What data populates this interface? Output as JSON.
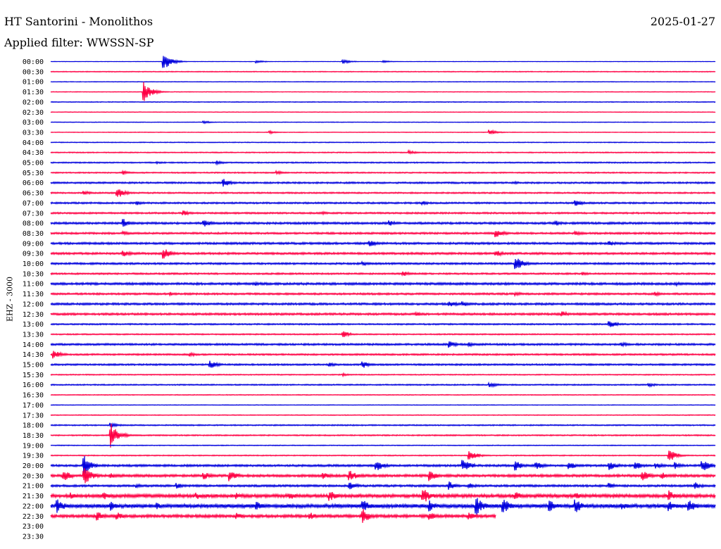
{
  "header": {
    "station": "HT Santorini - Monolithos",
    "date": "2025-01-27",
    "filter": "Applied filter: WWSSN-SP",
    "channel": "EHZ - 3000"
  },
  "colors": {
    "blue": "#0000dd",
    "red": "#ff0044"
  },
  "chart_data": {
    "type": "line",
    "title": "HT Santorini - Monolithos",
    "subtitle": "Applied filter: WWSSN-SP",
    "ylabel": "EHZ - 3000",
    "grid": false,
    "row_labels": [
      "00:00",
      "00:30",
      "01:00",
      "01:30",
      "02:00",
      "02:30",
      "03:00",
      "03:30",
      "04:00",
      "04:30",
      "05:00",
      "05:30",
      "06:00",
      "06:30",
      "07:00",
      "07:30",
      "08:00",
      "08:30",
      "09:00",
      "09:30",
      "10:00",
      "10:30",
      "11:00",
      "11:30",
      "12:00",
      "12:30",
      "13:00",
      "13:30",
      "14:00",
      "14:30",
      "15:00",
      "15:30",
      "16:00",
      "16:30",
      "17:00",
      "17:30",
      "18:00",
      "18:30",
      "19:00",
      "19:30",
      "20:00",
      "20:30",
      "21:00",
      "21:30",
      "22:00",
      "22:30",
      "23:00",
      "23:30"
    ],
    "row_color_pattern": [
      "blue",
      "red"
    ],
    "traces_drawn": 46,
    "last_trace_end_fraction": 0.67,
    "rows": [
      {
        "label": "00:00",
        "noise": 0.2,
        "events": [
          {
            "x": 0.17,
            "amp": 12
          },
          {
            "x": 0.44,
            "amp": 3
          },
          {
            "x": 0.31,
            "amp": 2
          },
          {
            "x": 0.5,
            "amp": 2
          }
        ]
      },
      {
        "label": "00:30",
        "noise": 0.4,
        "events": []
      },
      {
        "label": "01:00",
        "noise": 0.3,
        "events": []
      },
      {
        "label": "01:30",
        "noise": 0.3,
        "events": [
          {
            "x": 0.14,
            "amp": 14
          }
        ]
      },
      {
        "label": "02:00",
        "noise": 0.4,
        "events": []
      },
      {
        "label": "02:30",
        "noise": 0.3,
        "events": []
      },
      {
        "label": "03:00",
        "noise": 0.3,
        "events": [
          {
            "x": 0.23,
            "amp": 2
          }
        ]
      },
      {
        "label": "03:30",
        "noise": 0.3,
        "events": [
          {
            "x": 0.33,
            "amp": 2
          },
          {
            "x": 0.66,
            "amp": 4
          }
        ]
      },
      {
        "label": "04:00",
        "noise": 0.4,
        "events": []
      },
      {
        "label": "04:30",
        "noise": 0.5,
        "events": [
          {
            "x": 0.54,
            "amp": 3
          }
        ]
      },
      {
        "label": "05:00",
        "noise": 0.6,
        "events": [
          {
            "x": 0.16,
            "amp": 2
          },
          {
            "x": 0.25,
            "amp": 3
          }
        ]
      },
      {
        "label": "05:30",
        "noise": 0.6,
        "events": [
          {
            "x": 0.11,
            "amp": 3
          },
          {
            "x": 0.34,
            "amp": 3
          }
        ]
      },
      {
        "label": "06:00",
        "noise": 0.8,
        "events": [
          {
            "x": 0.26,
            "amp": 6
          },
          {
            "x": 0.7,
            "amp": 2
          }
        ]
      },
      {
        "label": "06:30",
        "noise": 0.7,
        "events": [
          {
            "x": 0.05,
            "amp": 3
          },
          {
            "x": 0.1,
            "amp": 8
          }
        ]
      },
      {
        "label": "07:00",
        "noise": 0.8,
        "events": [
          {
            "x": 0.13,
            "amp": 3
          },
          {
            "x": 0.56,
            "amp": 3
          },
          {
            "x": 0.79,
            "amp": 5
          }
        ]
      },
      {
        "label": "07:30",
        "noise": 0.8,
        "events": [
          {
            "x": 0.2,
            "amp": 4
          },
          {
            "x": 0.41,
            "amp": 2
          }
        ]
      },
      {
        "label": "08:00",
        "noise": 1.0,
        "events": [
          {
            "x": 0.11,
            "amp": 6
          },
          {
            "x": 0.23,
            "amp": 6
          },
          {
            "x": 0.51,
            "amp": 4
          },
          {
            "x": 0.76,
            "amp": 4
          }
        ]
      },
      {
        "label": "08:30",
        "noise": 0.9,
        "events": [
          {
            "x": 0.11,
            "amp": 3
          },
          {
            "x": 0.67,
            "amp": 7
          },
          {
            "x": 0.79,
            "amp": 4
          }
        ]
      },
      {
        "label": "09:00",
        "noise": 1.0,
        "events": [
          {
            "x": 0.48,
            "amp": 5
          },
          {
            "x": 0.84,
            "amp": 4
          }
        ]
      },
      {
        "label": "09:30",
        "noise": 1.0,
        "events": [
          {
            "x": 0.11,
            "amp": 5
          },
          {
            "x": 0.17,
            "amp": 8
          },
          {
            "x": 0.67,
            "amp": 5
          }
        ]
      },
      {
        "label": "10:00",
        "noise": 0.9,
        "events": [
          {
            "x": 0.47,
            "amp": 3
          },
          {
            "x": 0.7,
            "amp": 10
          }
        ]
      },
      {
        "label": "10:30",
        "noise": 0.8,
        "events": [
          {
            "x": 0.53,
            "amp": 4
          },
          {
            "x": 0.8,
            "amp": 3
          }
        ]
      },
      {
        "label": "11:00",
        "noise": 1.1,
        "events": [
          {
            "x": 0.31,
            "amp": 3
          },
          {
            "x": 0.94,
            "amp": 3
          }
        ]
      },
      {
        "label": "11:30",
        "noise": 0.9,
        "events": [
          {
            "x": 0.18,
            "amp": 3
          },
          {
            "x": 0.7,
            "amp": 3
          },
          {
            "x": 0.91,
            "amp": 3
          }
        ]
      },
      {
        "label": "12:00",
        "noise": 1.0,
        "events": [
          {
            "x": 0.6,
            "amp": 5
          },
          {
            "x": 0.62,
            "amp": 4
          }
        ]
      },
      {
        "label": "12:30",
        "noise": 1.0,
        "events": [
          {
            "x": 0.55,
            "amp": 3
          },
          {
            "x": 0.77,
            "amp": 4
          }
        ]
      },
      {
        "label": "13:00",
        "noise": 0.7,
        "events": [
          {
            "x": 0.84,
            "amp": 6
          }
        ]
      },
      {
        "label": "13:30",
        "noise": 0.6,
        "events": [
          {
            "x": 0.44,
            "amp": 5
          }
        ]
      },
      {
        "label": "14:00",
        "noise": 0.9,
        "events": [
          {
            "x": 0.6,
            "amp": 5
          },
          {
            "x": 0.63,
            "amp": 3
          },
          {
            "x": 0.86,
            "amp": 3
          }
        ]
      },
      {
        "label": "14:30",
        "noise": 0.8,
        "events": [
          {
            "x": 0.005,
            "amp": 7
          },
          {
            "x": 0.21,
            "amp": 3
          }
        ]
      },
      {
        "label": "15:00",
        "noise": 0.8,
        "events": [
          {
            "x": 0.24,
            "amp": 6
          },
          {
            "x": 0.42,
            "amp": 3
          },
          {
            "x": 0.47,
            "amp": 5
          }
        ]
      },
      {
        "label": "15:30",
        "noise": 0.5,
        "events": [
          {
            "x": 0.44,
            "amp": 2
          }
        ]
      },
      {
        "label": "16:00",
        "noise": 0.6,
        "events": [
          {
            "x": 0.66,
            "amp": 4
          },
          {
            "x": 0.9,
            "amp": 3
          }
        ]
      },
      {
        "label": "16:30",
        "noise": 0.4,
        "events": []
      },
      {
        "label": "17:00",
        "noise": 0.3,
        "events": []
      },
      {
        "label": "17:30",
        "noise": 0.4,
        "events": []
      },
      {
        "label": "18:00",
        "noise": 0.6,
        "events": [
          {
            "x": 0.09,
            "amp": 4
          }
        ]
      },
      {
        "label": "18:30",
        "noise": 0.6,
        "events": [
          {
            "x": 0.09,
            "amp": 18
          }
        ]
      },
      {
        "label": "19:00",
        "noise": 0.4,
        "events": []
      },
      {
        "label": "19:30",
        "noise": 0.5,
        "events": [
          {
            "x": 0.63,
            "amp": 8
          },
          {
            "x": 0.93,
            "amp": 10
          }
        ]
      },
      {
        "label": "20:00",
        "noise": 1.0,
        "events": [
          {
            "x": 0.05,
            "amp": 16
          },
          {
            "x": 0.49,
            "amp": 8
          },
          {
            "x": 0.62,
            "amp": 10
          },
          {
            "x": 0.7,
            "amp": 7
          },
          {
            "x": 0.73,
            "amp": 6
          },
          {
            "x": 0.78,
            "amp": 6
          },
          {
            "x": 0.84,
            "amp": 8
          },
          {
            "x": 0.88,
            "amp": 6
          },
          {
            "x": 0.91,
            "amp": 5
          },
          {
            "x": 0.94,
            "amp": 5
          },
          {
            "x": 0.98,
            "amp": 10
          }
        ]
      },
      {
        "label": "20:30",
        "noise": 1.2,
        "events": [
          {
            "x": 0.02,
            "amp": 8
          },
          {
            "x": 0.05,
            "amp": 14
          },
          {
            "x": 0.09,
            "amp": 4
          },
          {
            "x": 0.23,
            "amp": 6
          },
          {
            "x": 0.27,
            "amp": 8
          },
          {
            "x": 0.41,
            "amp": 5
          },
          {
            "x": 0.45,
            "amp": 8
          },
          {
            "x": 0.57,
            "amp": 8
          },
          {
            "x": 0.89,
            "amp": 8
          },
          {
            "x": 0.92,
            "amp": 5
          }
        ]
      },
      {
        "label": "21:00",
        "noise": 1.0,
        "events": [
          {
            "x": 0.13,
            "amp": 3
          },
          {
            "x": 0.19,
            "amp": 4
          },
          {
            "x": 0.45,
            "amp": 6
          },
          {
            "x": 0.6,
            "amp": 6
          },
          {
            "x": 0.63,
            "amp": 4
          },
          {
            "x": 0.84,
            "amp": 4
          },
          {
            "x": 0.97,
            "amp": 5
          }
        ]
      },
      {
        "label": "21:30",
        "noise": 1.6,
        "events": [
          {
            "x": 0.03,
            "amp": 5
          },
          {
            "x": 0.08,
            "amp": 6
          },
          {
            "x": 0.22,
            "amp": 5
          },
          {
            "x": 0.28,
            "amp": 5
          },
          {
            "x": 0.36,
            "amp": 6
          },
          {
            "x": 0.42,
            "amp": 8
          },
          {
            "x": 0.56,
            "amp": 12
          },
          {
            "x": 0.7,
            "amp": 6
          },
          {
            "x": 0.79,
            "amp": 5
          },
          {
            "x": 0.93,
            "amp": 8
          }
        ]
      },
      {
        "label": "22:00",
        "noise": 1.8,
        "events": [
          {
            "x": 0.01,
            "amp": 10
          },
          {
            "x": 0.09,
            "amp": 7
          },
          {
            "x": 0.16,
            "amp": 5
          },
          {
            "x": 0.31,
            "amp": 7
          },
          {
            "x": 0.47,
            "amp": 9
          },
          {
            "x": 0.57,
            "amp": 8
          },
          {
            "x": 0.64,
            "amp": 14
          },
          {
            "x": 0.68,
            "amp": 12
          },
          {
            "x": 0.75,
            "amp": 9
          },
          {
            "x": 0.79,
            "amp": 10
          },
          {
            "x": 0.86,
            "amp": 6
          },
          {
            "x": 0.93,
            "amp": 8
          },
          {
            "x": 0.96,
            "amp": 10
          }
        ]
      },
      {
        "label": "22:30",
        "noise": 1.4,
        "events": [
          {
            "x": 0.07,
            "amp": 8
          },
          {
            "x": 0.1,
            "amp": 6
          },
          {
            "x": 0.28,
            "amp": 5
          },
          {
            "x": 0.39,
            "amp": 6
          },
          {
            "x": 0.47,
            "amp": 11
          },
          {
            "x": 0.57,
            "amp": 6
          },
          {
            "x": 0.63,
            "amp": 6
          }
        ]
      }
    ]
  }
}
